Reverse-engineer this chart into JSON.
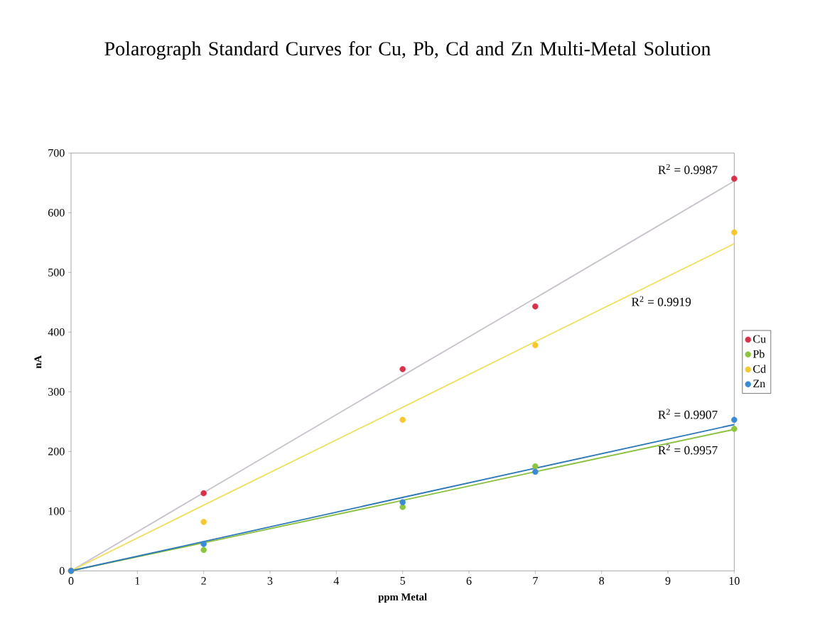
{
  "chart_data": {
    "type": "scatter",
    "title": "Polarograph Standard Curves for Cu, Pb, Cd and Zn Multi-Metal Solution",
    "xlabel": "ppm Metal",
    "ylabel": "nA",
    "x": [
      0,
      2,
      5,
      7,
      10
    ],
    "series": [
      {
        "name": "Cu",
        "marker": "circle",
        "color": "#d8324a",
        "values": [
          0,
          130,
          338,
          443,
          657
        ]
      },
      {
        "name": "Pb",
        "marker": "circle",
        "color": "#8cc63f",
        "values": [
          0,
          35,
          107,
          175,
          238
        ]
      },
      {
        "name": "Cd",
        "marker": "circle",
        "color": "#f7c72e",
        "values": [
          0,
          82,
          253,
          378,
          567
        ]
      },
      {
        "name": "Zn",
        "marker": "circle",
        "color": "#3a8ad6",
        "values": [
          0,
          45,
          115,
          166,
          253
        ]
      },
      {
        "type": "line",
        "marker": "none",
        "color": "#c9c2cc",
        "values": [
          0,
          131,
          327,
          457,
          653
        ]
      },
      {
        "type": "line",
        "marker": "none",
        "color": "#f0e060",
        "values": [
          0,
          110,
          274,
          384,
          548
        ]
      },
      {
        "type": "line",
        "marker": "none",
        "color": "#8cc040",
        "values": [
          0,
          47,
          118,
          166,
          237
        ]
      },
      {
        "type": "line",
        "marker": "none",
        "color": "#2f78b8",
        "values": [
          0,
          49,
          123,
          172,
          245
        ]
      }
    ],
    "xlim": [
      0,
      10
    ],
    "xticks": [
      0,
      1,
      2,
      3,
      4,
      5,
      6,
      7,
      8,
      9,
      10
    ],
    "ylim": [
      0,
      700
    ],
    "yticks": [
      0,
      100,
      200,
      300,
      400,
      500,
      600,
      700
    ],
    "legend": "right",
    "grid": false,
    "annotations": [
      "R$^{2}$ = 0.9987",
      "R$^{2}$ = 0.9919",
      "R$^{2}$ = 0.9907",
      "R$^{2}$ = 0.9957"
    ]
  }
}
